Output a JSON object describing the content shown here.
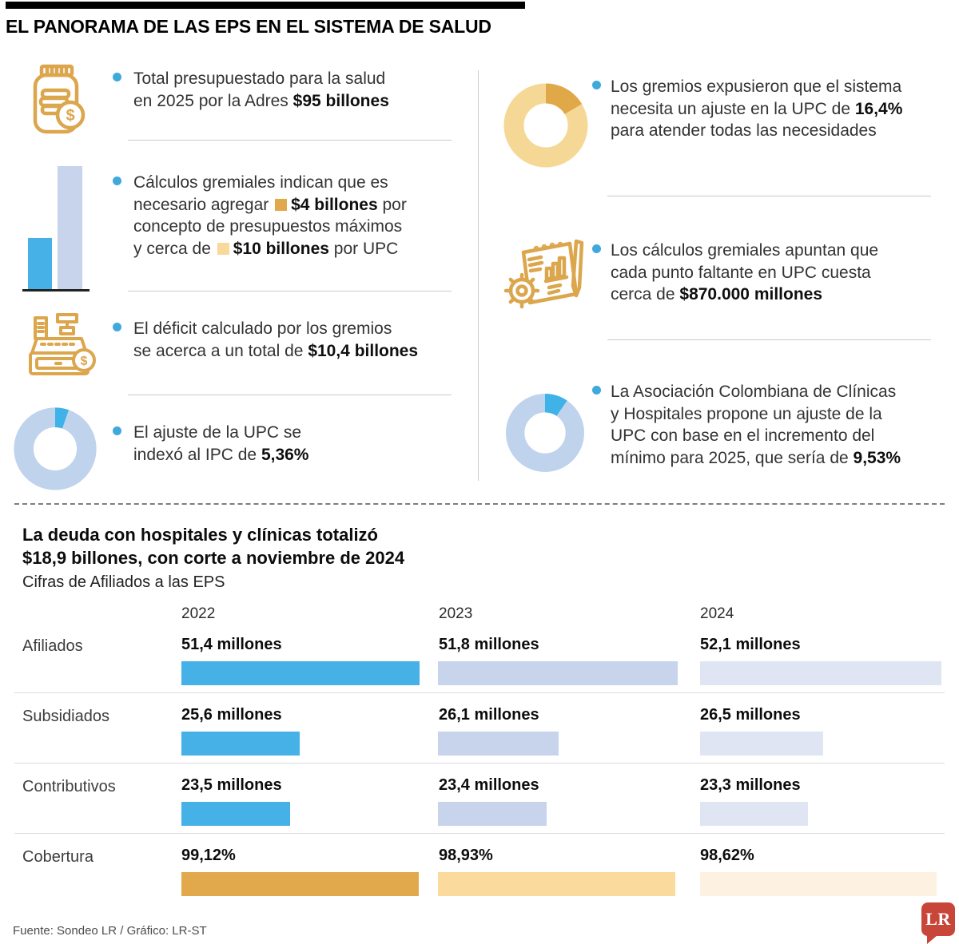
{
  "title": "EL PANORAMA DE LAS EPS EN EL SISTEMA DE SALUD",
  "colors": {
    "accent_blue": "#3FA9DC",
    "icon_gold": "#DCA64D",
    "bar_blue": [
      "#45B1E6",
      "#C7D4EC",
      "#DFE5F3"
    ],
    "bar_gold": [
      "#E2A94C",
      "#FBDB9D",
      "#FDF2E2"
    ],
    "donut_base_blue": "#BFD3ED",
    "donut_slice_blue": "#3FB3E8",
    "donut_base_gold": "#F6D896",
    "donut_slice_gold": "#E0A848",
    "square_dark_gold": "#E2A94C",
    "square_light_gold": "#F9D99A",
    "lr_red": "#C8453A"
  },
  "intro": {
    "left": [
      {
        "icon": "coins-jar-icon",
        "lines": [
          [
            {
              "t": "Total presupuestado para la salud"
            }
          ],
          [
            {
              "t": "en 2025 por la Adres "
            },
            {
              "t": "$95 billones",
              "b": true
            }
          ]
        ]
      },
      {
        "icon": "bar-chart-icon",
        "lines": [
          [
            {
              "t": "Cálculos gremiales indican que es"
            }
          ],
          [
            {
              "t": "necesario agregar "
            },
            {
              "t": "$4 billones",
              "b": true,
              "sq": "#E2A94C"
            },
            {
              "t": " por"
            }
          ],
          [
            {
              "t": "concepto de presupuestos máximos"
            }
          ],
          [
            {
              "t": "y cerca de "
            },
            {
              "t": "$10 billones",
              "b": true,
              "sq": "#F9D99A"
            },
            {
              "t": " por UPC"
            }
          ]
        ]
      },
      {
        "icon": "cash-register-icon",
        "lines": [
          [
            {
              "t": "El déficit calculado por los gremios"
            }
          ],
          [
            {
              "t": "se acerca a un total de "
            },
            {
              "t": "$10,4 billones",
              "b": true
            }
          ]
        ]
      },
      {
        "icon": "donut-chart-icon",
        "donut": {
          "pct": 5.36,
          "base": "#BFD3ED",
          "slice": "#3FB3E8"
        },
        "lines": [
          [
            {
              "t": "El ajuste de la UPC se"
            }
          ],
          [
            {
              "t": "indexó al IPC de "
            },
            {
              "t": "5,36%",
              "b": true
            }
          ]
        ]
      }
    ],
    "right": [
      {
        "icon": "donut-chart-icon",
        "donut": {
          "pct": 16.4,
          "base": "#F6D896",
          "slice": "#E0A848"
        },
        "lines": [
          [
            {
              "t": "Los gremios expusieron que el sistema"
            }
          ],
          [
            {
              "t": "necesita un ajuste en la UPC de "
            },
            {
              "t": "16,4%",
              "b": true
            }
          ],
          [
            {
              "t": "para atender todas las necesidades"
            }
          ]
        ]
      },
      {
        "icon": "report-gear-icon",
        "lines": [
          [
            {
              "t": "Los cálculos gremiales apuntan que"
            }
          ],
          [
            {
              "t": "cada punto faltante en UPC cuesta"
            }
          ],
          [
            {
              "t": "cerca de "
            },
            {
              "t": "$870.000 millones",
              "b": true
            }
          ]
        ]
      },
      {
        "icon": "donut-chart-icon",
        "donut": {
          "pct": 9.53,
          "base": "#BFD3ED",
          "slice": "#3FB3E8"
        },
        "lines": [
          [
            {
              "t": "La Asociación Colombiana de Clínicas"
            }
          ],
          [
            {
              "t": "y Hospitales propone un ajuste de la"
            }
          ],
          [
            {
              "t": "UPC con base en el incremento del"
            }
          ],
          [
            {
              "t": "mínimo para 2025, que sería de "
            },
            {
              "t": "9,53%",
              "b": true
            }
          ]
        ]
      }
    ]
  },
  "debt_section": {
    "heading": "La deuda con hospitales y clínicas totalizó\n$18,9 billones, con corte a noviembre de 2024",
    "subtitle": "Cifras de Afiliados a las EPS"
  },
  "chart_data": [
    {
      "type": "bar",
      "title": "Cifras de Afiliados a las EPS",
      "categories": [
        "2022",
        "2023",
        "2024"
      ],
      "rows": [
        {
          "label": "Afiliados",
          "values": [
            51.4,
            51.8,
            52.1
          ],
          "labels": [
            "51,4 millones",
            "51,8 millones",
            "52,1 millones"
          ],
          "unit": "millones",
          "palette": "bar_blue"
        },
        {
          "label": "Subsidiados",
          "values": [
            25.6,
            26.1,
            26.5
          ],
          "labels": [
            "25,6 millones",
            "26,1 millones",
            "26,5 millones"
          ],
          "unit": "millones",
          "palette": "bar_blue"
        },
        {
          "label": "Contributivos",
          "values": [
            23.5,
            23.4,
            23.3
          ],
          "labels": [
            "23,5 millones",
            "23,4 millones",
            "23,3 millones"
          ],
          "unit": "millones",
          "palette": "bar_blue"
        },
        {
          "label": "Cobertura",
          "values": [
            99.12,
            98.93,
            98.62
          ],
          "labels": [
            "99,12%",
            "98,93%",
            "98,62%"
          ],
          "unit": "%",
          "palette": "bar_gold"
        }
      ]
    },
    {
      "type": "pie",
      "label": "Ajuste de la UPC indexado al IPC",
      "value_pct": 5.36
    },
    {
      "type": "pie",
      "label": "Ajuste en la UPC pedido por los gremios",
      "value_pct": 16.4
    },
    {
      "type": "pie",
      "label": "Ajuste propuesto por la Asociación Colombiana de Clínicas y Hospitales",
      "value_pct": 9.53
    }
  ],
  "mini_bar_icon": {
    "values_billones": [
      4,
      10
    ]
  },
  "footer": {
    "source": "Fuente: Sondeo LR / Gráfico: LR-ST",
    "logo": "LR"
  }
}
